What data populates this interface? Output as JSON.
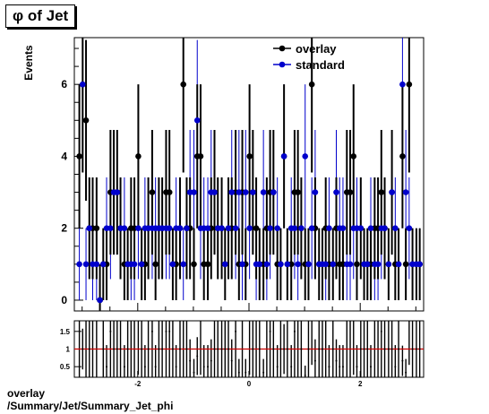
{
  "title": "φ of Jet",
  "footer": {
    "line1": "overlay",
    "line2": "/Summary/Jet/Summary_Jet_phi"
  },
  "colors": {
    "overlay": "#000000",
    "standard": "#0000cc",
    "ratio_line": "#cc0000"
  },
  "chart_data": [
    {
      "type": "scatter",
      "ylabel": "Events",
      "xlim": [
        -3.14,
        3.14
      ],
      "ylim": [
        -0.3,
        7.3
      ],
      "yticks": [
        0,
        2,
        4,
        6
      ],
      "legend_position": "top-right",
      "grid": false,
      "x": [
        -3.05,
        -2.99,
        -2.93,
        -2.87,
        -2.81,
        -2.74,
        -2.68,
        -2.62,
        -2.56,
        -2.49,
        -2.43,
        -2.37,
        -2.31,
        -2.24,
        -2.18,
        -2.12,
        -2.06,
        -1.99,
        -1.93,
        -1.87,
        -1.81,
        -1.74,
        -1.68,
        -1.62,
        -1.56,
        -1.49,
        -1.43,
        -1.37,
        -1.31,
        -1.24,
        -1.18,
        -1.12,
        -1.06,
        -0.99,
        -0.93,
        -0.87,
        -0.81,
        -0.74,
        -0.68,
        -0.62,
        -0.56,
        -0.49,
        -0.43,
        -0.37,
        -0.31,
        -0.24,
        -0.18,
        -0.12,
        -0.06,
        0.01,
        0.07,
        0.13,
        0.19,
        0.26,
        0.32,
        0.38,
        0.44,
        0.51,
        0.57,
        0.63,
        0.69,
        0.76,
        0.82,
        0.88,
        0.94,
        1.01,
        1.07,
        1.13,
        1.19,
        1.26,
        1.32,
        1.38,
        1.44,
        1.51,
        1.57,
        1.63,
        1.69,
        1.76,
        1.82,
        1.88,
        1.94,
        2.01,
        2.07,
        2.13,
        2.19,
        2.26,
        2.32,
        2.38,
        2.44,
        2.51,
        2.57,
        2.63,
        2.69,
        2.76,
        2.82,
        2.88,
        2.94,
        3.01,
        3.07
      ],
      "series": [
        {
          "name": "overlay",
          "y": [
            4,
            6,
            5,
            2,
            2,
            2,
            0,
            1,
            1,
            3,
            3,
            3,
            2,
            1,
            1,
            2,
            2,
            4,
            1,
            1,
            2,
            3,
            1,
            2,
            2,
            3,
            3,
            1,
            1,
            2,
            6,
            2,
            2,
            1,
            4,
            4,
            1,
            1,
            2,
            3,
            2,
            2,
            1,
            2,
            2,
            3,
            1,
            3,
            1,
            4,
            3,
            2,
            1,
            1,
            2,
            3,
            3,
            1,
            1,
            4,
            1,
            1,
            3,
            3,
            2,
            1,
            1,
            6,
            2,
            1,
            1,
            2,
            1,
            1,
            2,
            1,
            1,
            3,
            3,
            4,
            1,
            2,
            1,
            1,
            1,
            2,
            2,
            3,
            2,
            1,
            3,
            1,
            1,
            4,
            1,
            6,
            1,
            1,
            1
          ]
        },
        {
          "name": "standard",
          "y": [
            1,
            6,
            1,
            2,
            1,
            1,
            0,
            1,
            2,
            2,
            3,
            3,
            2,
            2,
            1,
            1,
            1,
            2,
            1,
            2,
            2,
            2,
            2,
            2,
            2,
            2,
            2,
            1,
            2,
            2,
            1,
            2,
            3,
            3,
            5,
            2,
            2,
            2,
            3,
            3,
            2,
            2,
            1,
            2,
            3,
            2,
            3,
            1,
            3,
            2,
            3,
            1,
            1,
            3,
            1,
            2,
            3,
            2,
            1,
            4,
            1,
            2,
            2,
            1,
            2,
            4,
            1,
            2,
            3,
            1,
            1,
            1,
            2,
            1,
            3,
            2,
            2,
            1,
            1,
            2,
            2,
            2,
            1,
            1,
            2,
            1,
            1,
            2,
            2,
            1,
            3,
            2,
            1,
            6,
            3,
            2,
            1,
            1,
            1
          ]
        }
      ]
    },
    {
      "type": "scatter",
      "xlim": [
        -3.14,
        3.14
      ],
      "ylim": [
        0.2,
        1.8
      ],
      "yticks": [
        0.5,
        1,
        1.5
      ],
      "xticks": [
        -2,
        0,
        2
      ],
      "reference_line": 1
    }
  ]
}
